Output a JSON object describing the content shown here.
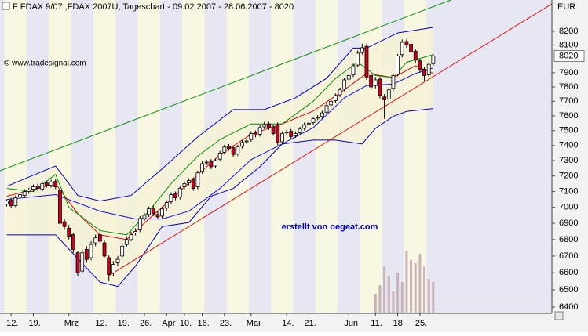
{
  "chart_data": {
    "type": "candlestick",
    "title": "F FDAX 9/07 ,FDAX 2007U, Tageschart - 09.02.2007 - 28.06.2007 - 8020",
    "copyright": "© www.tradesignal.com",
    "annotation": "erstellt von oegeat.com",
    "y_axis_label": "EUR",
    "log_scale": true,
    "grid": false,
    "xlim": [
      -1.5,
      122.7
    ],
    "xticks": [
      {
        "value": 1,
        "label": "12."
      },
      {
        "value": 6,
        "label": "19."
      },
      {
        "value": 14,
        "label": "Mrz"
      },
      {
        "value": 21,
        "label": "12."
      },
      {
        "value": 26,
        "label": "19."
      },
      {
        "value": 31,
        "label": "26."
      },
      {
        "value": 36,
        "label": "Apr"
      },
      {
        "value": 40,
        "label": "10."
      },
      {
        "value": 44,
        "label": "16."
      },
      {
        "value": 49,
        "label": "23."
      },
      {
        "value": 55,
        "label": "Mai"
      },
      {
        "value": 63,
        "label": "14."
      },
      {
        "value": 68,
        "label": "21."
      },
      {
        "value": 77,
        "label": "Jun"
      },
      {
        "value": 83,
        "label": "11."
      },
      {
        "value": 88,
        "label": "18."
      },
      {
        "value": 93,
        "label": "25."
      }
    ],
    "ylim": [
      6364,
      8434
    ],
    "yticks": [
      6400,
      6500,
      6600,
      6700,
      6800,
      6900,
      7000,
      7100,
      7200,
      7300,
      7400,
      7500,
      7600,
      7700,
      7800,
      7900,
      8100,
      8200
    ],
    "last_price": 8020,
    "up_color": "#ffffff",
    "down_color": "#c8001e",
    "week_colors": [
      "#f8f8e2",
      "#e6e7f3"
    ],
    "open": [
      7020,
      7045,
      7010,
      7065,
      7075,
      7100,
      7115,
      7135,
      7115,
      7155,
      7140,
      7165,
      7110,
      6910,
      6870,
      6830,
      6720,
      6610,
      6740,
      6690,
      6780,
      6830,
      6780,
      6690,
      6600,
      6660,
      6700,
      6770,
      6800,
      6840,
      6860,
      6930,
      6955,
      6995,
      6955,
      6945,
      6995,
      7035,
      7085,
      7065,
      7130,
      7155,
      7175,
      7130,
      7230,
      7285,
      7295,
      7265,
      7310,
      7355,
      7395,
      7385,
      7345,
      7395,
      7425,
      7440,
      7485,
      7475,
      7525,
      7545,
      7525,
      7540,
      7425,
      7485,
      7495,
      7465,
      7485,
      7515,
      7545,
      7555,
      7585,
      7595,
      7625,
      7675,
      7705,
      7745,
      7785,
      7855,
      7885,
      7955,
      8045,
      8090,
      7880,
      7810,
      7855,
      7730,
      7715,
      7790,
      7890,
      8030,
      8125,
      8105,
      8055,
      7985,
      7925,
      7885,
      7965
    ],
    "high": [
      7050,
      7060,
      7075,
      7095,
      7115,
      7125,
      7145,
      7150,
      7165,
      7170,
      7175,
      7180,
      7120,
      6930,
      6890,
      6840,
      6730,
      6740,
      6760,
      6790,
      6830,
      6850,
      6795,
      6705,
      6670,
      6700,
      6780,
      6820,
      6850,
      6870,
      6945,
      6965,
      7005,
      7010,
      6975,
      7005,
      7045,
      7095,
      7100,
      7135,
      7165,
      7185,
      7190,
      7235,
      7295,
      7305,
      7310,
      7315,
      7365,
      7405,
      7410,
      7400,
      7405,
      7435,
      7445,
      7495,
      7500,
      7535,
      7560,
      7560,
      7540,
      7555,
      7495,
      7505,
      7510,
      7495,
      7525,
      7555,
      7565,
      7595,
      7605,
      7635,
      7685,
      7715,
      7755,
      7795,
      7865,
      7895,
      7965,
      8060,
      8110,
      8110,
      7895,
      7870,
      7870,
      7750,
      7795,
      7895,
      8035,
      8140,
      8140,
      8120,
      8070,
      8000,
      7940,
      7975,
      8035
    ],
    "low": [
      7005,
      6995,
      7000,
      7050,
      7060,
      7085,
      7100,
      7105,
      7100,
      7125,
      7125,
      7115,
      6880,
      6860,
      6800,
      6720,
      6580,
      6600,
      6660,
      6675,
      6760,
      6770,
      6690,
      6550,
      6580,
      6640,
      6690,
      6755,
      6790,
      6825,
      6845,
      6915,
      6940,
      6945,
      6925,
      6930,
      6980,
      7020,
      7045,
      7050,
      7115,
      7140,
      7105,
      7115,
      7215,
      7270,
      7245,
      7250,
      7295,
      7340,
      7365,
      7325,
      7330,
      7380,
      7410,
      7425,
      7455,
      7460,
      7510,
      7505,
      7465,
      7400,
      7410,
      7470,
      7445,
      7450,
      7470,
      7500,
      7530,
      7540,
      7570,
      7580,
      7610,
      7660,
      7690,
      7730,
      7770,
      7840,
      7870,
      7940,
      8030,
      7850,
      7780,
      7790,
      7720,
      7580,
      7700,
      7770,
      7875,
      8010,
      8080,
      8030,
      7970,
      7900,
      7840,
      7870,
      7950
    ],
    "close": [
      7040,
      7010,
      7060,
      7080,
      7100,
      7110,
      7130,
      7120,
      7150,
      7140,
      7160,
      7130,
      6900,
      6880,
      6820,
      6740,
      6600,
      6720,
      6680,
      6770,
      6810,
      6790,
      6700,
      6590,
      6650,
      6680,
      6760,
      6800,
      6830,
      6850,
      6930,
      6950,
      6990,
      6960,
      6940,
      6990,
      7030,
      7080,
      7060,
      7120,
      7150,
      7170,
      7120,
      7220,
      7280,
      7290,
      7260,
      7300,
      7350,
      7390,
      7380,
      7340,
      7390,
      7420,
      7430,
      7480,
      7470,
      7520,
      7540,
      7520,
      7480,
      7420,
      7480,
      7490,
      7460,
      7480,
      7510,
      7540,
      7550,
      7580,
      7590,
      7620,
      7670,
      7700,
      7740,
      7780,
      7850,
      7880,
      7950,
      8040,
      8080,
      7870,
      7800,
      7850,
      7740,
      7710,
      7780,
      7880,
      8020,
      8120,
      8100,
      8050,
      7990,
      7920,
      7880,
      7960,
      8020
    ],
    "volume": {
      "color": "#c9b2ba",
      "y3lim": [
        0,
        1000000
      ],
      "x": [
        83,
        84,
        85,
        86,
        87,
        88,
        89,
        90,
        91,
        92,
        93,
        94,
        95,
        96
      ],
      "values": [
        60000,
        90000,
        150000,
        120000,
        70000,
        130000,
        100000,
        200000,
        170000,
        160000,
        190000,
        150000,
        110000,
        100000
      ]
    },
    "band_fill": "#f6f2d6",
    "series": [
      {
        "color": "#0000b4",
        "x": [
          0,
          11,
          16,
          21,
          28,
          35,
          43,
          51,
          58,
          65,
          72,
          78,
          81,
          88,
          96
        ],
        "values": [
          7133,
          7265,
          7075,
          7040,
          7075,
          7247,
          7457,
          7643,
          7643,
          7724,
          7861,
          8077,
          8077,
          8188,
          8229
        ]
      },
      {
        "color": "#0000b4",
        "x": [
          0,
          11,
          16,
          21,
          25,
          29,
          35,
          41,
          46,
          51,
          57,
          62,
          69,
          74,
          80,
          83,
          87,
          90,
          96
        ],
        "values": [
          6829,
          6829,
          6685,
          6545,
          6520,
          6640,
          6880,
          6905,
          7070,
          7120,
          7260,
          7410,
          7436,
          7436,
          7410,
          7515,
          7597,
          7630,
          7650
        ]
      },
      {
        "color": "#1010e0",
        "x": [
          0,
          11,
          21,
          29,
          35,
          41,
          48,
          55,
          62,
          69,
          76,
          81,
          87,
          92,
          96
        ],
        "values": [
          7050,
          7080,
          6976,
          6927,
          6927,
          6976,
          7120,
          7306,
          7410,
          7520,
          7724,
          7810,
          7820,
          7895,
          7935
        ]
      },
      {
        "color": "#e00000",
        "x": [
          0,
          11,
          16,
          21,
          27,
          32,
          37,
          43,
          48,
          55,
          62,
          69,
          76,
          81,
          87,
          92,
          96
        ],
        "values": [
          7070,
          7150,
          6960,
          6829,
          6800,
          6927,
          7050,
          7208,
          7338,
          7475,
          7545,
          7633,
          7780,
          7895,
          7866,
          7950,
          7895
        ]
      },
      {
        "color": "#008c00",
        "x": [
          0,
          6,
          11,
          14,
          21,
          27,
          32,
          37,
          43,
          48,
          55,
          62,
          69,
          74,
          79,
          83,
          87,
          90,
          96
        ],
        "values": [
          7120,
          7100,
          7210,
          7000,
          6855,
          6829,
          6976,
          7150,
          7330,
          7440,
          7545,
          7545,
          7700,
          7860,
          7975,
          7880,
          7866,
          7975,
          8030
        ]
      }
    ],
    "trendlines": [
      {
        "color": "#109010",
        "x": [
          -1.5,
          100
        ],
        "values": [
          7234,
          8434
        ]
      },
      {
        "color": "#e01010",
        "x": [
          23,
          122.7
        ],
        "values": [
          6583,
          8405
        ]
      }
    ]
  }
}
